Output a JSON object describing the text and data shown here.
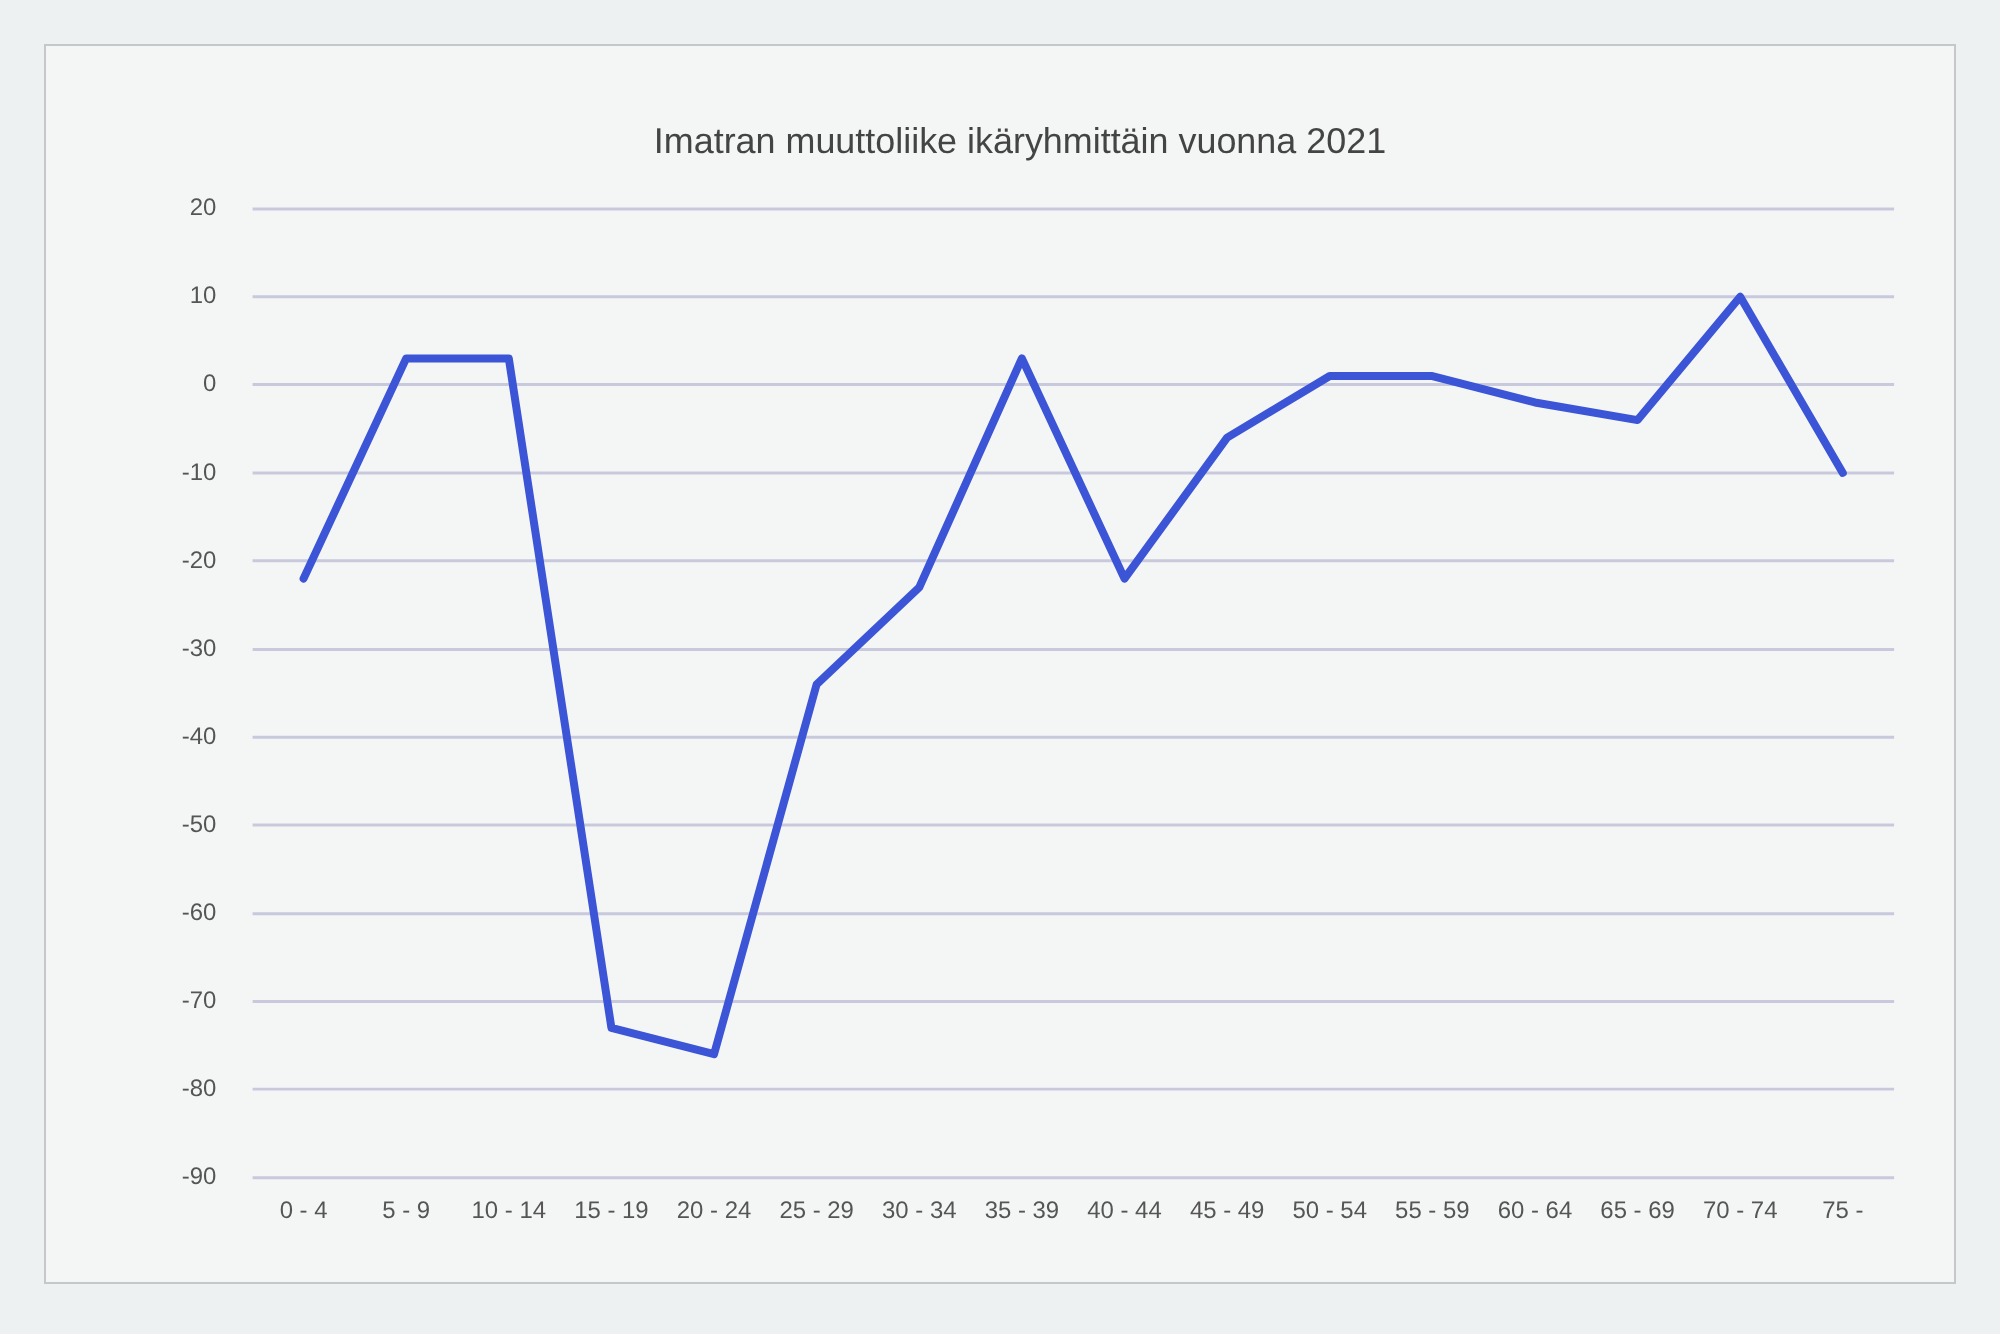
{
  "chart_data": {
    "type": "line",
    "title": "Imatran muuttoliike ikäryhmittäin vuonna 2021",
    "categories": [
      "0 - 4",
      "5 - 9",
      "10 - 14",
      "15 - 19",
      "20 - 24",
      "25 - 29",
      "30 - 34",
      "35 - 39",
      "40 - 44",
      "45 - 49",
      "50 - 54",
      "55 - 59",
      "60 - 64",
      "65 - 69",
      "70 - 74",
      "75 -"
    ],
    "series": [
      {
        "color": "#3b55d6",
        "values": [
          -22,
          3,
          3,
          -73,
          -76,
          -34,
          -23,
          3,
          -22,
          -6,
          1,
          1,
          -2,
          -4,
          10,
          -10
        ]
      }
    ],
    "ylim": [
      -90,
      20
    ],
    "yticks": [
      -90,
      -80,
      -70,
      -60,
      -50,
      -40,
      -30,
      -20,
      -10,
      0,
      10,
      20
    ],
    "grid": "y",
    "marker": "none",
    "line_style": "solid"
  }
}
